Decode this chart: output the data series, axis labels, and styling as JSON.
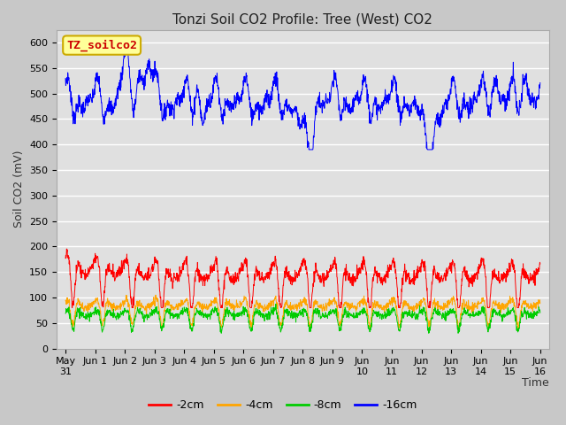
{
  "title": "Tonzi Soil CO2 Profile: Tree (West) CO2",
  "ylabel": "Soil CO2 (mV)",
  "xlabel": "Time",
  "legend_label": "TZ_soilco2",
  "legend_series": [
    "-2cm",
    "-4cm",
    "-8cm",
    "-16cm"
  ],
  "colors": {
    "-2cm": "#ff0000",
    "-4cm": "#ffa500",
    "-8cm": "#00cc00",
    "-16cm": "#0000ff"
  },
  "ylim": [
    0,
    625
  ],
  "yticks": [
    0,
    50,
    100,
    150,
    200,
    250,
    300,
    350,
    400,
    450,
    500,
    550,
    600
  ],
  "n_points": 1680,
  "fig_bg": "#c8c8c8",
  "plot_bg": "#e0e0e0",
  "title_fontsize": 11,
  "label_fontsize": 9,
  "tick_fontsize": 8,
  "legend_box_color": "#ffff99",
  "legend_box_edge": "#ccaa00"
}
